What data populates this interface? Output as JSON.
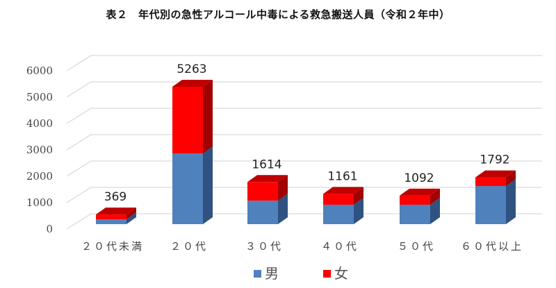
{
  "title": "表２　年代別の急性アルコール中毒による救急搬送人員（令和２年中）",
  "colors": {
    "male": "#4f81bd",
    "male_side": "#2f5280",
    "male_top": "#3d68a0",
    "female": "#ff0000",
    "female_side": "#a00000",
    "female_top": "#c00000",
    "grid": "#d9d9d9"
  },
  "chart_data": {
    "type": "bar",
    "stacked": true,
    "three_d": true,
    "title": "表２　年代別の急性アルコール中毒による救急搬送人員（令和２年中）",
    "categories": [
      "２０代未満",
      "２０代",
      "３０代",
      "４０代",
      "５０代",
      "６０代以上"
    ],
    "series": [
      {
        "name": "男",
        "values": [
          185,
          2710,
          900,
          745,
          745,
          1460
        ]
      },
      {
        "name": "女",
        "values": [
          184,
          2553,
          714,
          416,
          347,
          332
        ]
      }
    ],
    "totals": [
      369,
      5263,
      1614,
      1161,
      1092,
      1792
    ],
    "yticks": [
      "0",
      "1000",
      "2000",
      "3000",
      "4000",
      "5000",
      "6000"
    ],
    "ylim": [
      0,
      6000
    ],
    "grid": true,
    "legend_position": "bottom",
    "xlabel": "",
    "ylabel": ""
  },
  "legend": [
    {
      "label": "男"
    },
    {
      "label": "女"
    }
  ]
}
